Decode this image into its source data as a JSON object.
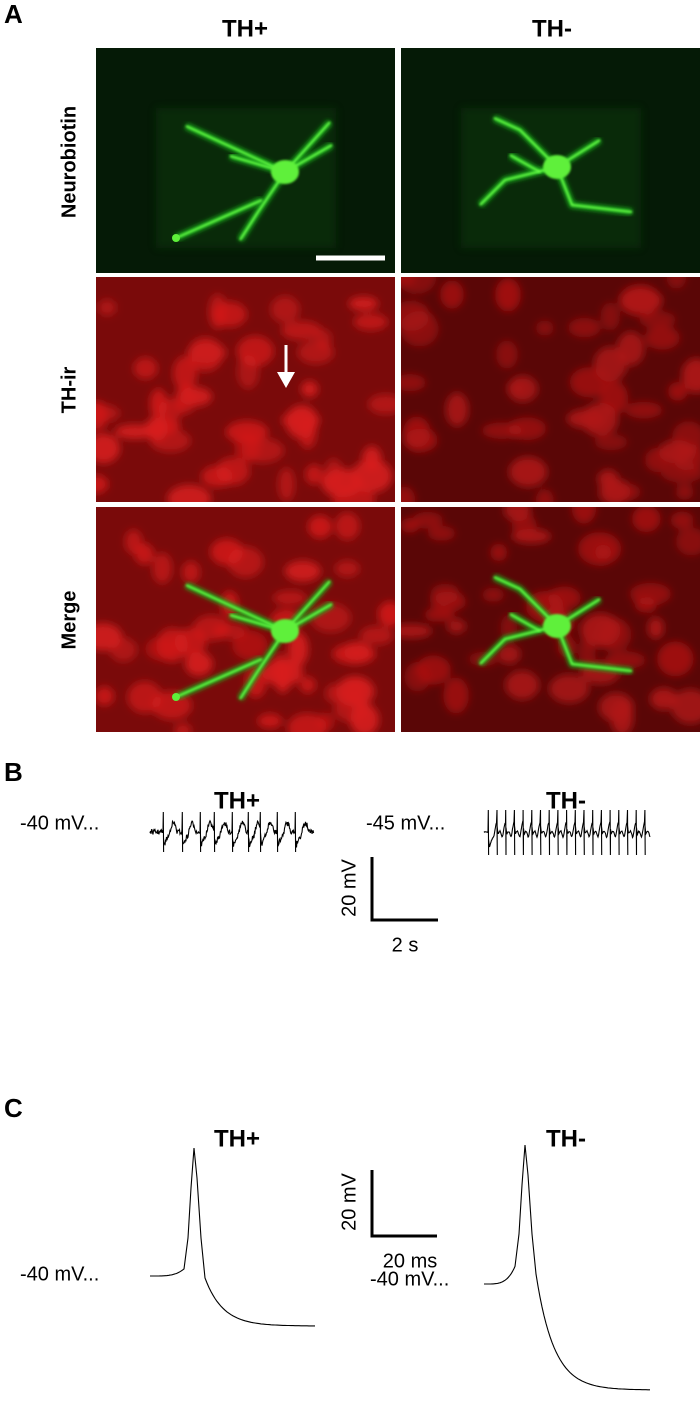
{
  "panel_a": {
    "label": "A",
    "columns": [
      "TH+",
      "TH-"
    ],
    "rows": [
      "Neurobiotin",
      "TH-ir",
      "Merge"
    ]
  },
  "panel_b": {
    "label": "B",
    "traces": [
      {
        "title": "TH+",
        "baseline": "-40 mV..."
      },
      {
        "title": "TH-",
        "baseline": "-45 mV..."
      }
    ],
    "scale_bar": {
      "y": "20 mV",
      "x": "2 s"
    }
  },
  "panel_c": {
    "label": "C",
    "traces": [
      {
        "title": "TH+",
        "baseline": "-40 mV..."
      },
      {
        "title": "TH-",
        "baseline": "-40 mV..."
      }
    ],
    "scale_bar": {
      "y": "20 mV",
      "x": "20 ms"
    }
  }
}
